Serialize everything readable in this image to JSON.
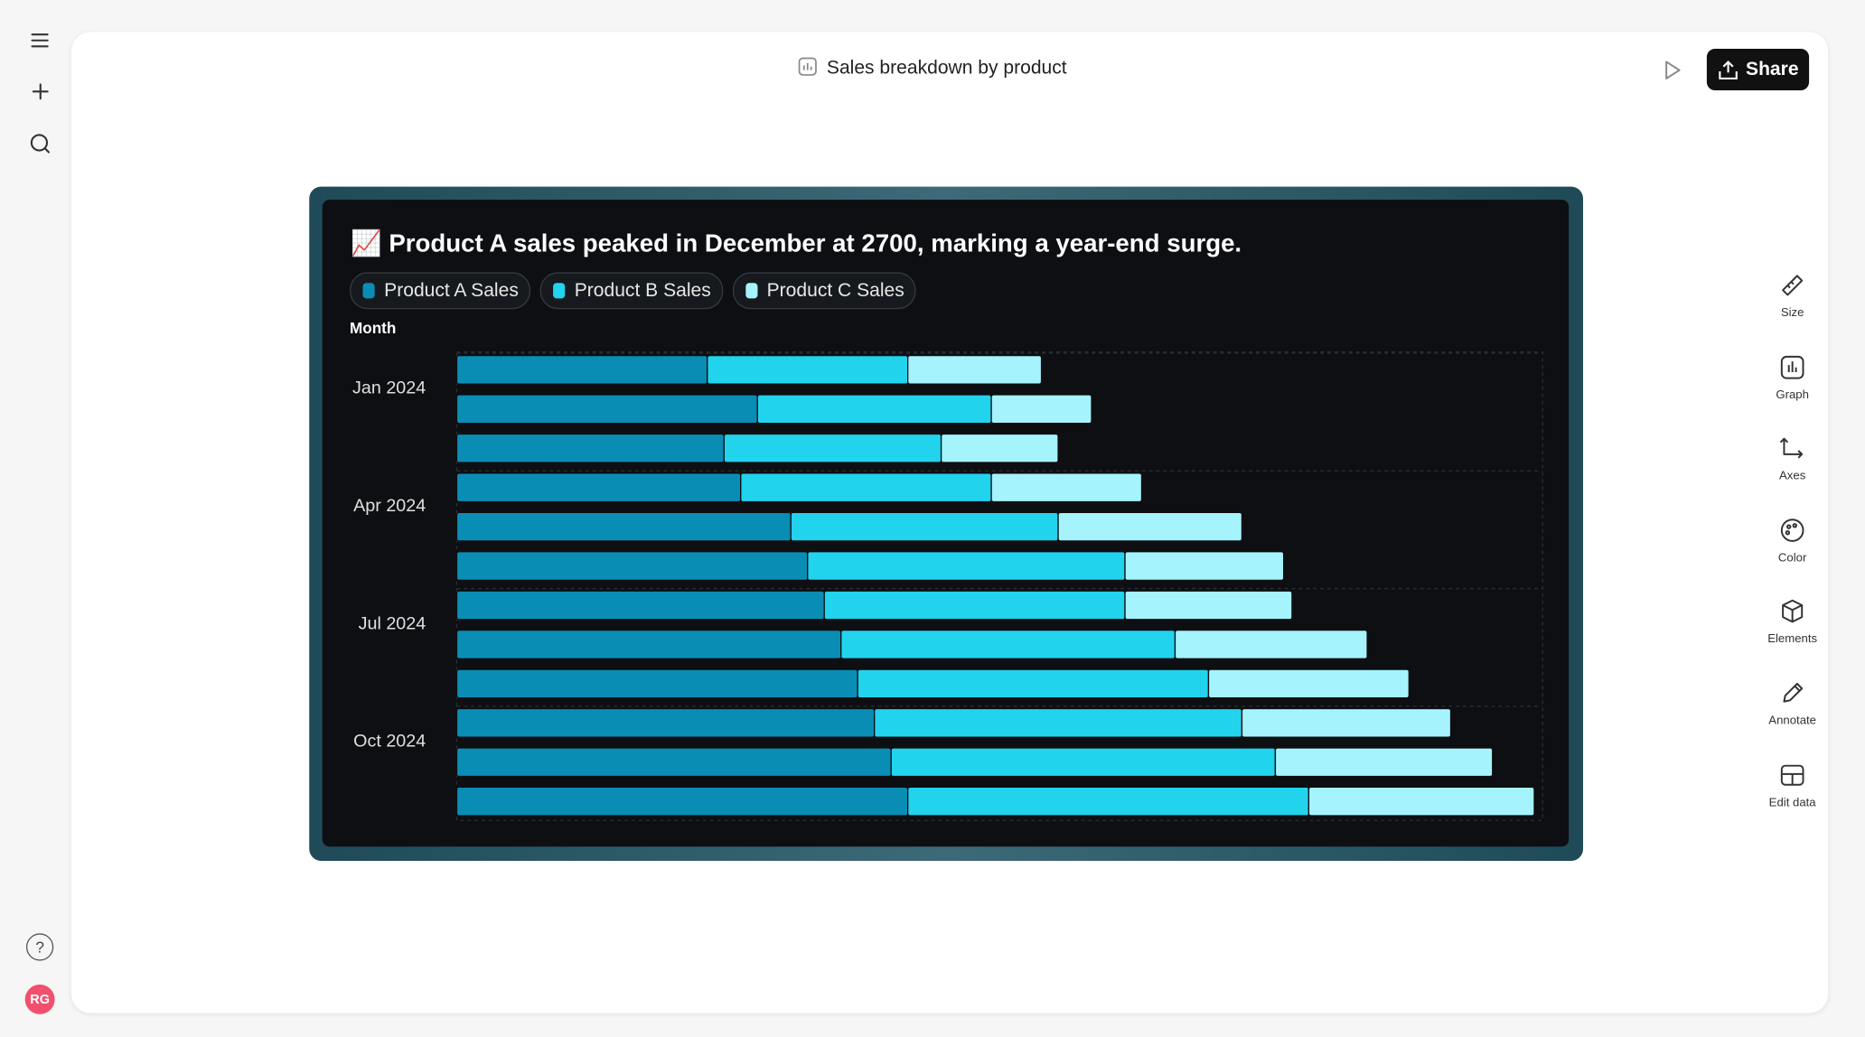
{
  "header": {
    "title": "Sales breakdown by product",
    "share": "Share"
  },
  "sidebar": [
    "Size",
    "Graph",
    "Axes",
    "Color",
    "Elements",
    "Annotate",
    "Edit data"
  ],
  "help": "?",
  "avatar": "RG",
  "chart_data": {
    "type": "stacked-bar-horizontal",
    "title": "📈 Product A sales peaked in December at 2700, marking a year-end surge.",
    "y_label": "Month",
    "categories": [
      "Jan 2024",
      null,
      null,
      "Apr 2024",
      null,
      null,
      "Jul 2024",
      null,
      null,
      "Oct 2024",
      null,
      null
    ],
    "series": [
      {
        "name": "Product A Sales",
        "color": "#0a8db5",
        "values": [
          1500,
          1800,
          1600,
          1700,
          2000,
          2100,
          2200,
          2300,
          2400,
          2500,
          2600,
          2700
        ]
      },
      {
        "name": "Product B Sales",
        "color": "#22d3ee",
        "values": [
          1200,
          1400,
          1300,
          1500,
          1600,
          1900,
          1800,
          2000,
          2100,
          2200,
          2300,
          2400
        ]
      },
      {
        "name": "Product C Sales",
        "color": "#a5f3fc",
        "values": [
          800,
          600,
          700,
          900,
          1100,
          950,
          1000,
          1150,
          1200,
          1250,
          1300,
          1350
        ]
      }
    ],
    "xlim": [
      0,
      6500
    ]
  }
}
